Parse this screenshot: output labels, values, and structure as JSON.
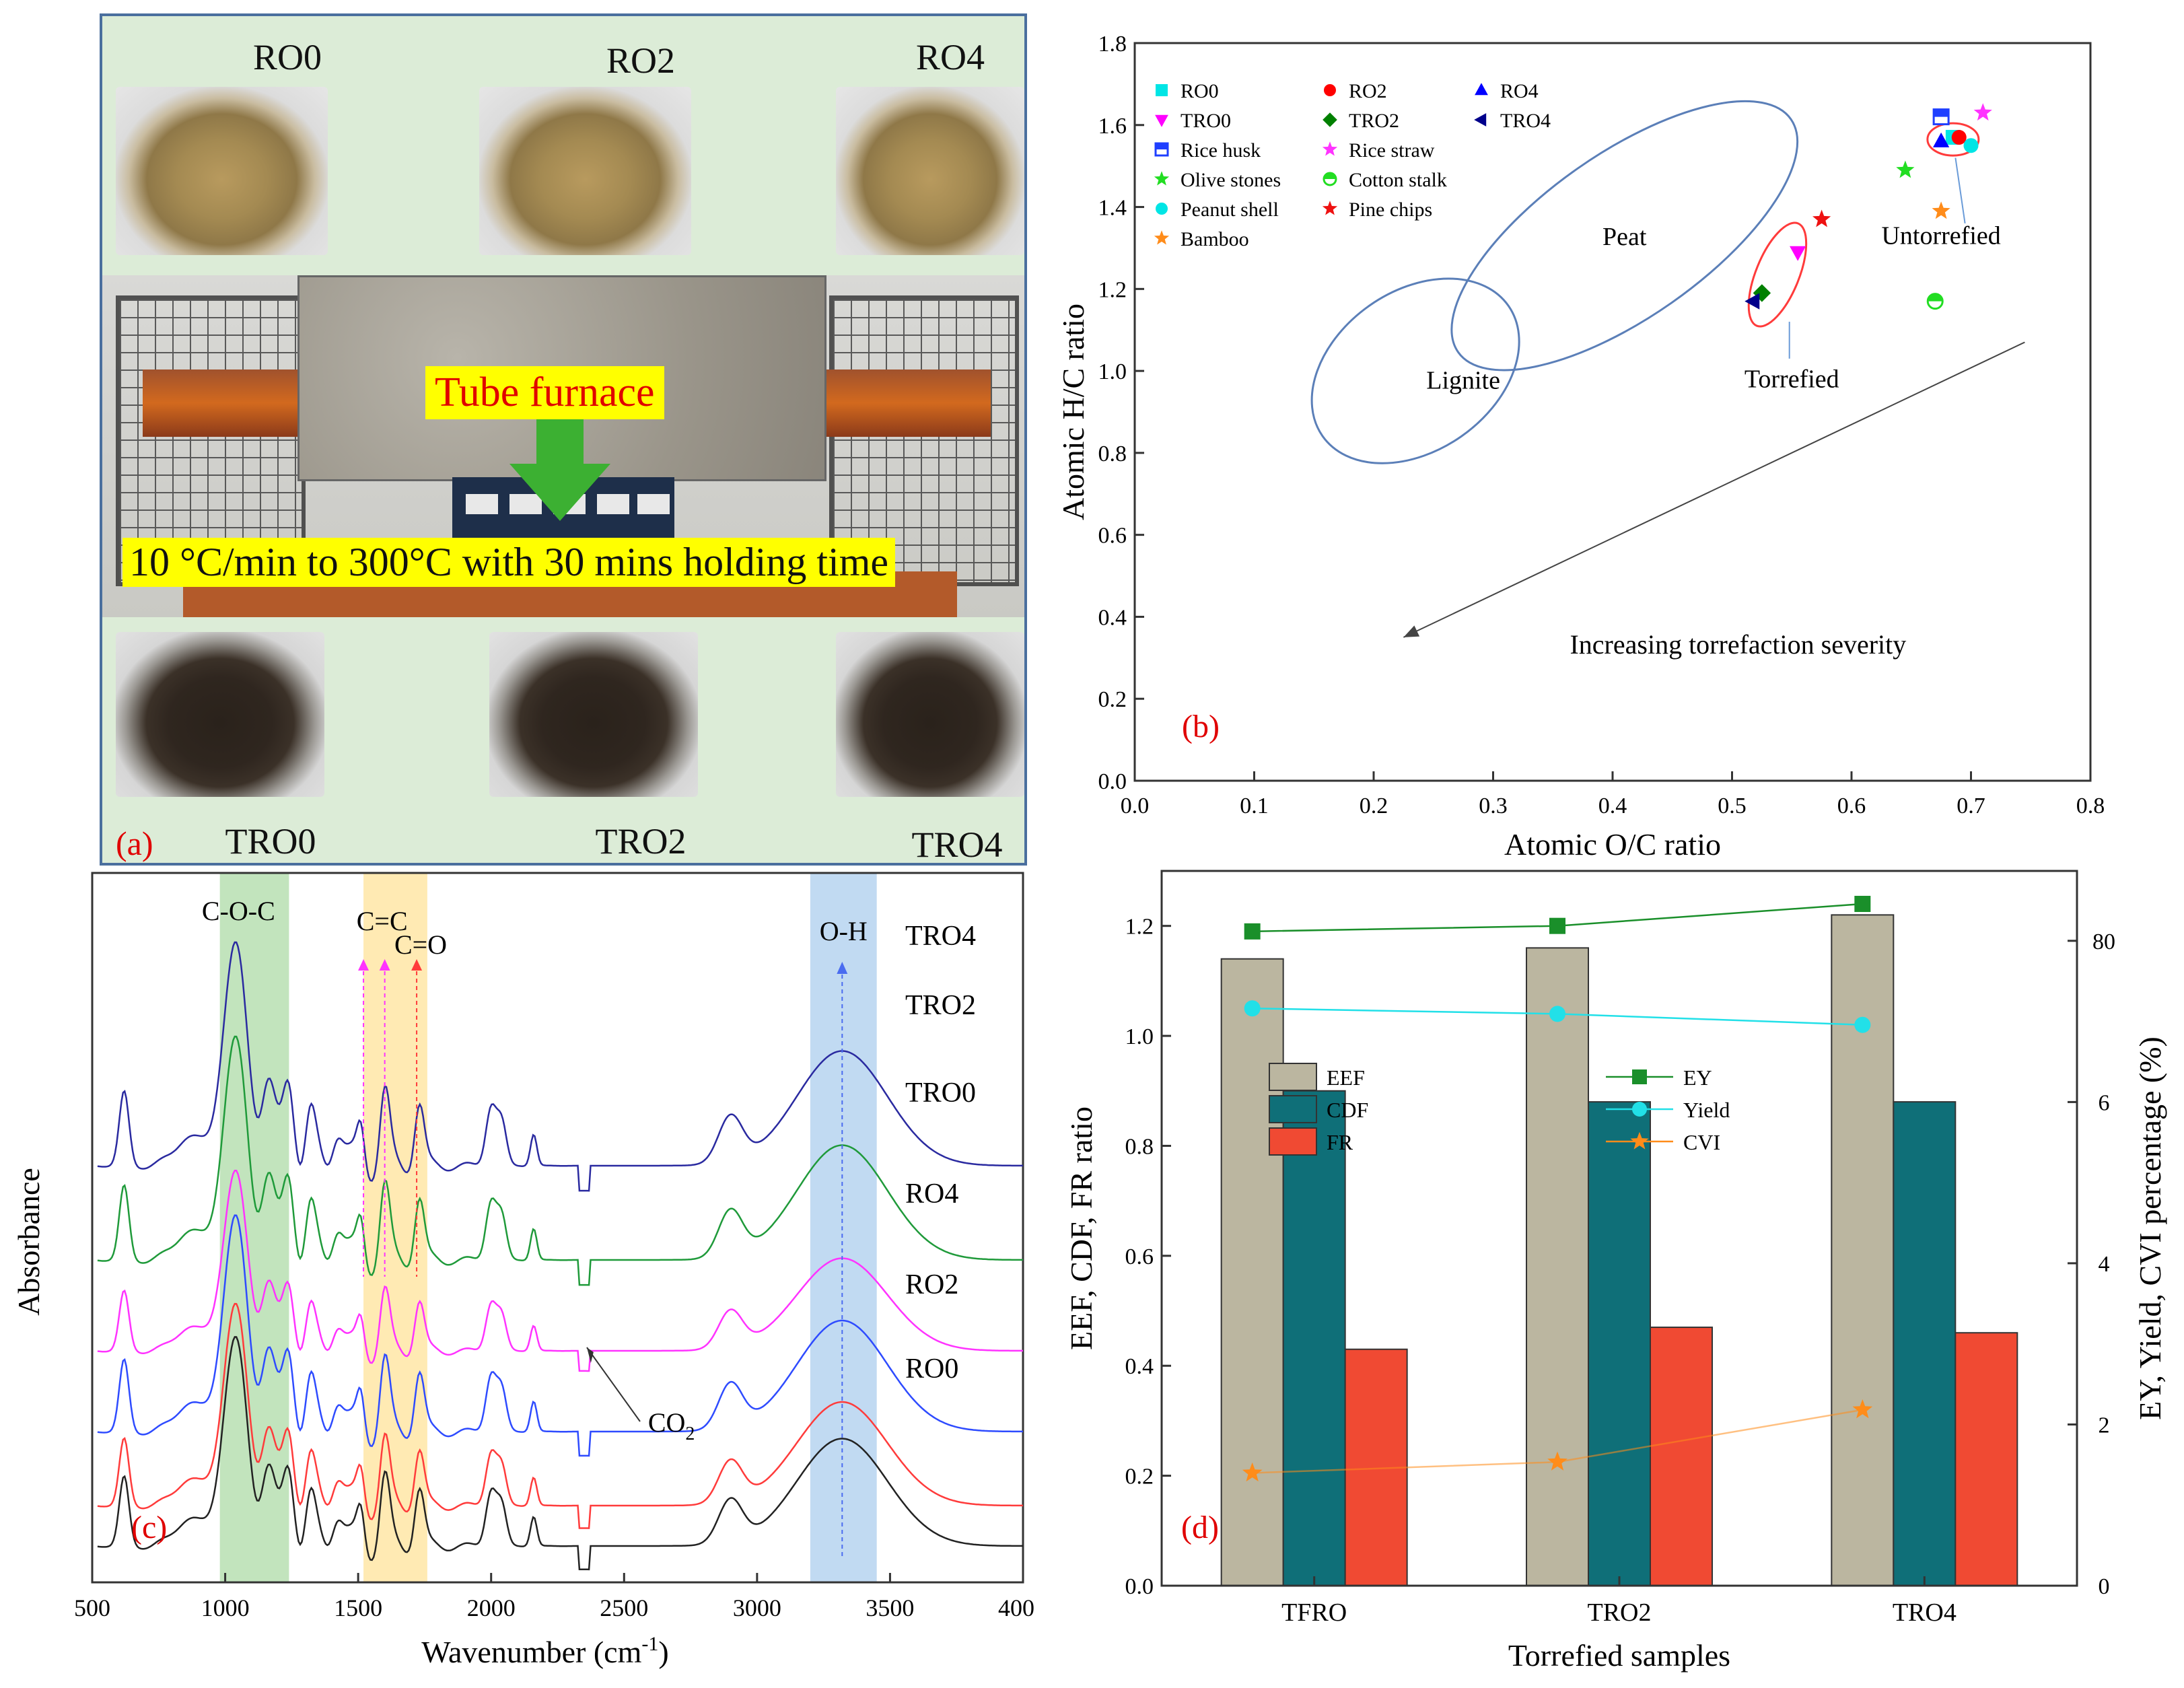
{
  "panel_a": {
    "label": "(a)",
    "top_labels": [
      "RO0",
      "RO2",
      "RO4"
    ],
    "bottom_labels": [
      "TRO0",
      "TRO2",
      "TRO4"
    ],
    "furnace_label": "Tube furnace",
    "condition_label": "10 °C/min to 300°C with 30 mins holding time"
  },
  "chart_data": [
    {
      "id": "b",
      "type": "scatter",
      "panel_label": "(b)",
      "xlabel": "Atomic O/C ratio",
      "ylabel": "Atomic H/C ratio",
      "xlim": [
        0.0,
        0.8
      ],
      "ylim": [
        0.0,
        1.8
      ],
      "xticks": [
        "0.0",
        "0.1",
        "0.2",
        "0.3",
        "0.4",
        "0.5",
        "0.6",
        "0.7",
        "0.8"
      ],
      "yticks": [
        "0.0",
        "0.2",
        "0.4",
        "0.6",
        "0.8",
        "1.0",
        "1.2",
        "1.4",
        "1.6",
        "1.8"
      ],
      "series": [
        {
          "name": "RO0",
          "marker": "square",
          "color": "#00e5e5",
          "x": 0.685,
          "y": 1.57
        },
        {
          "name": "RO2",
          "marker": "circle",
          "color": "#ff0000",
          "x": 0.69,
          "y": 1.57
        },
        {
          "name": "RO4",
          "marker": "triangle-up",
          "color": "#0000ff",
          "x": 0.675,
          "y": 1.56
        },
        {
          "name": "TRO0",
          "marker": "triangle-down",
          "color": "#ff00ff",
          "x": 0.555,
          "y": 1.29
        },
        {
          "name": "TRO2",
          "marker": "diamond",
          "color": "#008000",
          "x": 0.525,
          "y": 1.19
        },
        {
          "name": "TRO4",
          "marker": "triangle-left",
          "color": "#00008b",
          "x": 0.518,
          "y": 1.17
        },
        {
          "name": "Rice husk",
          "marker": "half-square",
          "color": "#1f3fff",
          "x": 0.675,
          "y": 1.62
        },
        {
          "name": "Rice straw",
          "marker": "star",
          "color": "#ff33ff",
          "x": 0.71,
          "y": 1.63
        },
        {
          "name": "Olive stones",
          "marker": "star",
          "color": "#22dd22",
          "x": 0.645,
          "y": 1.49
        },
        {
          "name": "Cotton stalk",
          "marker": "half-circle",
          "color": "#22dd22",
          "x": 0.67,
          "y": 1.17
        },
        {
          "name": "Peanut shell",
          "marker": "circle",
          "color": "#00e5e5",
          "x": 0.7,
          "y": 1.55
        },
        {
          "name": "Pine chips",
          "marker": "star",
          "color": "#ee1111",
          "x": 0.575,
          "y": 1.37
        },
        {
          "name": "Bamboo",
          "marker": "star",
          "color": "#ff8c1a",
          "x": 0.675,
          "y": 1.39
        }
      ],
      "regions": [
        {
          "name": "Peat",
          "cx": 0.41,
          "cy": 1.33,
          "rx": 0.17,
          "ry": 0.2
        },
        {
          "name": "Lignite",
          "cx": 0.235,
          "cy": 1.0,
          "rx": 0.095,
          "ry": 0.195
        }
      ],
      "annotations": {
        "torrefied": "Torrefied",
        "untorrefied": "Untorrefied",
        "severity": "Increasing torrefaction severity",
        "peat": "Peat",
        "lignite": "Lignite"
      },
      "severity_arrow": {
        "from": [
          0.745,
          1.07
        ],
        "to": [
          0.225,
          0.35
        ]
      }
    },
    {
      "id": "c",
      "type": "line",
      "panel_label": "(c)",
      "xlabel": "Wavenumber (cm",
      "xlabel_sup": "-1",
      "xlabel_end": ")",
      "ylabel": "Absorbance",
      "xlim": [
        500,
        4000
      ],
      "xticks": [
        "500",
        "1000",
        "1500",
        "2000",
        "2500",
        "3000",
        "3500",
        "400"
      ],
      "series_names": [
        "TRO4",
        "TRO2",
        "TRO0",
        "RO4",
        "RO2",
        "RO0"
      ],
      "series_colors": [
        "#2a2aa0",
        "#1f9a3a",
        "#ff33ff",
        "#2e4bff",
        "#ff3b3b",
        "#222222"
      ],
      "bands": [
        {
          "name": "C-O-C",
          "from": 980,
          "to": 1240,
          "color": "#b7dfb2"
        },
        {
          "name": "C=C / C=O",
          "from": 1520,
          "to": 1760,
          "color": "#ffe6a6"
        },
        {
          "name": "O-H",
          "from": 3200,
          "to": 3450,
          "color": "#b6d4f0"
        }
      ],
      "band_labels": {
        "coc": "C-O-C",
        "cc": "C=C",
        "co": "C=O",
        "oh": "O-H"
      },
      "co2_label": "CO",
      "co2_sub": "2"
    },
    {
      "id": "d",
      "type": "bar",
      "panel_label": "(d)",
      "categories": [
        "TFRO",
        "TRO2",
        "TRO4"
      ],
      "xlabel": "Torrefied samples",
      "ylabel": "EEF, CDF, FR ratio",
      "ylabel_right": "EY, Yield, CVI percentage (%)",
      "ylim": [
        0.0,
        1.3
      ],
      "ylim_right": [
        0,
        88.67
      ],
      "yticks": [
        "0.0",
        "0.2",
        "0.4",
        "0.6",
        "0.8",
        "1.0",
        "1.2"
      ],
      "yticks_right": [
        "0",
        "2",
        "4",
        "6",
        "80"
      ],
      "bar_series": [
        {
          "name": "EEF",
          "color": "#bbb6a0",
          "values": [
            1.14,
            1.16,
            1.22
          ]
        },
        {
          "name": "CDF",
          "color": "#0f6f78",
          "values": [
            0.9,
            0.88,
            0.88
          ]
        },
        {
          "name": "FR",
          "color": "#f04a33",
          "values": [
            0.43,
            0.47,
            0.46
          ]
        }
      ],
      "line_series": [
        {
          "name": "EY",
          "marker": "square",
          "color": "#1a8f2a",
          "values": [
            1.19,
            1.2,
            1.24
          ]
        },
        {
          "name": "Yield",
          "marker": "circle",
          "color": "#22e0e8",
          "values": [
            1.05,
            1.04,
            1.02
          ]
        },
        {
          "name": "CVI",
          "marker": "star",
          "color": "#ff8c1a",
          "values": [
            0.205,
            0.225,
            0.32
          ]
        }
      ]
    }
  ]
}
